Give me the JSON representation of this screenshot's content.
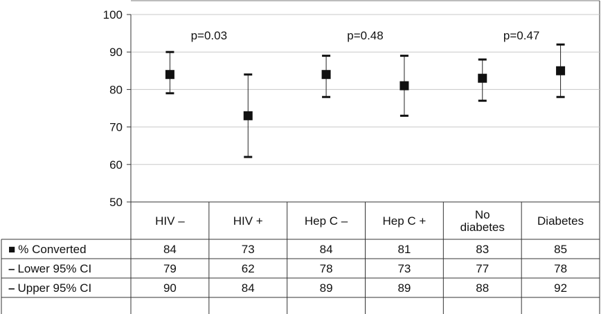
{
  "chart_data": {
    "type": "scatter",
    "categories": [
      "HIV –",
      "HIV +",
      "Hep C –",
      "Hep C +",
      "No diabetes",
      "Diabetes"
    ],
    "category_lines": [
      [
        "HIV –"
      ],
      [
        "HIV +"
      ],
      [
        "Hep C –"
      ],
      [
        "Hep C +"
      ],
      [
        "No",
        "diabetes"
      ],
      [
        "Diabetes"
      ]
    ],
    "series": [
      {
        "name": "% Converted",
        "marker": "■",
        "values": [
          84,
          73,
          84,
          81,
          83,
          85
        ]
      },
      {
        "name": "Lower 95% CI",
        "marker": "–",
        "values": [
          79,
          62,
          78,
          73,
          77,
          78
        ]
      },
      {
        "name": "Upper 95% CI",
        "marker": "–",
        "values": [
          90,
          84,
          89,
          89,
          88,
          92
        ]
      }
    ],
    "ylim": [
      50,
      100
    ],
    "yticks": [
      "50",
      "60",
      "70",
      "80",
      "90",
      "100"
    ],
    "grid": true,
    "annotations": [
      {
        "text": "p=0.03",
        "between": [
          0,
          1
        ]
      },
      {
        "text": "p=0.48",
        "between": [
          2,
          3
        ]
      },
      {
        "text": "p=0.47",
        "between": [
          4,
          5
        ]
      }
    ],
    "legend": "data table below plot"
  }
}
